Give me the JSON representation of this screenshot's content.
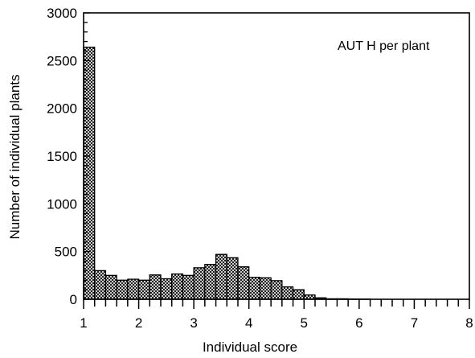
{
  "chart_data": {
    "type": "bar",
    "annotation": "AUT H per plant",
    "xlabel": "Individual score",
    "ylabel": "Number of individual plants",
    "xlim": [
      1,
      8
    ],
    "ylim": [
      0,
      3000
    ],
    "bin_width": 0.2,
    "x_ticks": [
      1,
      2,
      3,
      4,
      5,
      6,
      7,
      8
    ],
    "y_ticks": [
      0,
      500,
      1000,
      1500,
      2000,
      2500,
      3000
    ],
    "bars": [
      {
        "x": 1.0,
        "value": 2640
      },
      {
        "x": 1.2,
        "value": 300
      },
      {
        "x": 1.4,
        "value": 250
      },
      {
        "x": 1.6,
        "value": 200
      },
      {
        "x": 1.8,
        "value": 210
      },
      {
        "x": 2.0,
        "value": 200
      },
      {
        "x": 2.2,
        "value": 255
      },
      {
        "x": 2.4,
        "value": 215
      },
      {
        "x": 2.6,
        "value": 265
      },
      {
        "x": 2.8,
        "value": 250
      },
      {
        "x": 3.0,
        "value": 330
      },
      {
        "x": 3.2,
        "value": 365
      },
      {
        "x": 3.4,
        "value": 470
      },
      {
        "x": 3.6,
        "value": 435
      },
      {
        "x": 3.8,
        "value": 340
      },
      {
        "x": 4.0,
        "value": 230
      },
      {
        "x": 4.2,
        "value": 225
      },
      {
        "x": 4.4,
        "value": 195
      },
      {
        "x": 4.6,
        "value": 130
      },
      {
        "x": 4.8,
        "value": 100
      },
      {
        "x": 5.0,
        "value": 45
      },
      {
        "x": 5.2,
        "value": 15
      },
      {
        "x": 5.4,
        "value": 5
      },
      {
        "x": 5.6,
        "value": 5
      },
      {
        "x": 5.8,
        "value": 3
      },
      {
        "x": 6.0,
        "value": 2
      },
      {
        "x": 6.2,
        "value": 0
      },
      {
        "x": 6.4,
        "value": 0
      },
      {
        "x": 6.6,
        "value": 0
      },
      {
        "x": 6.8,
        "value": 0
      }
    ],
    "grid": false,
    "bar_fill": "crosshatch"
  }
}
